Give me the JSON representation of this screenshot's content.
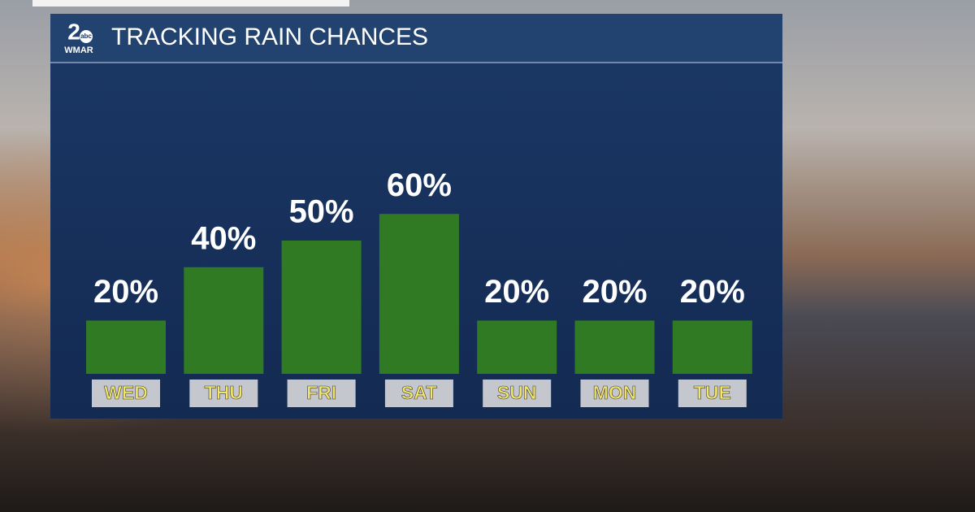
{
  "logo": {
    "number": "2",
    "network": "abc",
    "station": "WMAR"
  },
  "chart_data": {
    "type": "bar",
    "title": "TRACKING RAIN CHANCES",
    "categories": [
      "WED",
      "THU",
      "FRI",
      "SAT",
      "SUN",
      "MON",
      "TUE"
    ],
    "values": [
      20,
      40,
      50,
      60,
      20,
      20,
      20
    ],
    "value_labels": [
      "20%",
      "40%",
      "50%",
      "60%",
      "20%",
      "20%",
      "20%"
    ],
    "color": "#2f7a22"
  }
}
